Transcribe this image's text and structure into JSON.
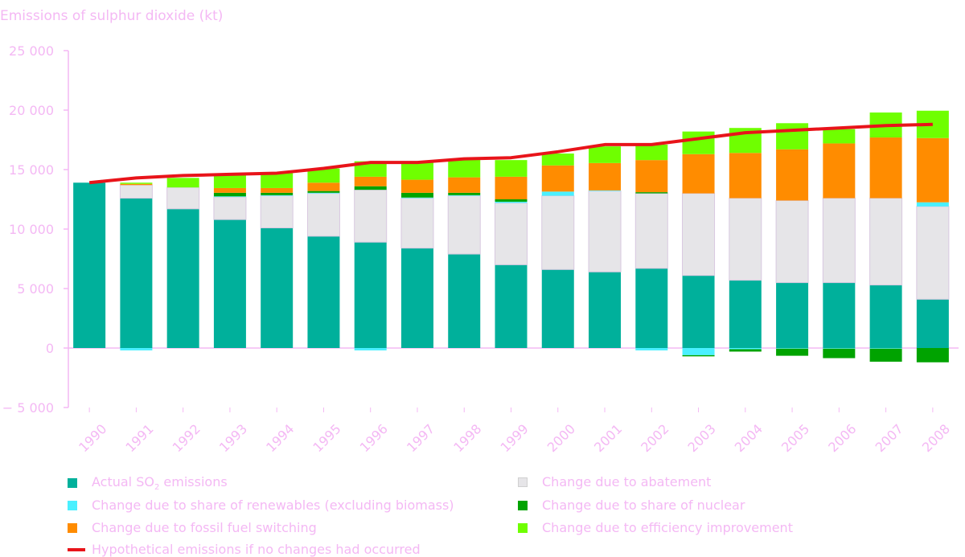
{
  "chart_data": {
    "type": "bar",
    "stacked": true,
    "title": "Emissions of sulphur dioxide (kt)",
    "ylabel": "Emissions of sulphur dioxide (kt)",
    "ylim": [
      -5000,
      25000
    ],
    "yticks": [
      -5000,
      0,
      5000,
      10000,
      15000,
      20000,
      25000
    ],
    "ytick_labels": [
      "− 5 000",
      "0",
      "5 000",
      "10 000",
      "15 000",
      "20 000",
      "25 000"
    ],
    "categories": [
      "1990",
      "1991",
      "1992",
      "1993",
      "1994",
      "1995",
      "1996",
      "1997",
      "1998",
      "1999",
      "2000",
      "2001",
      "2002",
      "2003",
      "2004",
      "2005",
      "2006",
      "2007",
      "2008"
    ],
    "series": [
      {
        "name": "Actual SO2 emissions",
        "key": "actual",
        "color": "#00b09b",
        "values": [
          13900,
          12600,
          11700,
          10800,
          10100,
          9400,
          8900,
          8400,
          7900,
          7000,
          6600,
          6400,
          6700,
          6100,
          5700,
          5500,
          5500,
          5300,
          4100
        ]
      },
      {
        "name": "Change due to abatement",
        "key": "abatement",
        "color": "#e6e5e8",
        "values": [
          0,
          1100,
          1800,
          1900,
          2700,
          3600,
          4400,
          4200,
          4900,
          5200,
          6200,
          6800,
          6300,
          6900,
          6900,
          6900,
          7100,
          7300,
          7800
        ]
      },
      {
        "name": "Change due to share of renewables (excluding biomass)",
        "key": "renewables",
        "color": "#4af0ff",
        "values": [
          0,
          -200,
          0,
          50,
          50,
          50,
          -200,
          50,
          50,
          100,
          350,
          50,
          -200,
          -600,
          -100,
          -50,
          -50,
          -50,
          350
        ]
      },
      {
        "name": "Change due to share of nuclear",
        "key": "nuclear",
        "color": "#00a300",
        "values": [
          0,
          0,
          0,
          300,
          200,
          150,
          300,
          400,
          200,
          200,
          0,
          0,
          100,
          -100,
          -200,
          -600,
          -800,
          -1100,
          -1200
        ]
      },
      {
        "name": "Change due to fossil fuel switching",
        "key": "fossil",
        "color": "#ff8c00",
        "values": [
          0,
          100,
          0,
          400,
          400,
          700,
          800,
          1100,
          1300,
          1900,
          2200,
          2300,
          2700,
          3300,
          3800,
          4300,
          4600,
          5100,
          5400
        ]
      },
      {
        "name": "Change due to efficiency improvement",
        "key": "efficiency",
        "color": "#6fff00",
        "values": [
          0,
          100,
          800,
          1200,
          1300,
          1200,
          1300,
          1500,
          1500,
          1400,
          1000,
          1400,
          1300,
          1900,
          2100,
          2200,
          1200,
          2100,
          2300
        ]
      }
    ],
    "line_series": {
      "name": "Hypothetical emissions if no changes had occurred",
      "color": "#e8141a",
      "values": [
        13900,
        14300,
        14500,
        14600,
        14700,
        15100,
        15600,
        15600,
        15900,
        16000,
        16500,
        17100,
        17100,
        17600,
        18100,
        18300,
        18500,
        18700,
        18800
      ]
    },
    "legend": [
      {
        "key": "actual",
        "label_pre": "Actual SO",
        "label_sub": "2",
        "label_post": " emissions",
        "color": "#00b09b"
      },
      {
        "key": "abatement",
        "label": "Change due to abatement",
        "color": "#e6e5e8"
      },
      {
        "key": "renewables",
        "label": "Change due to share of renewables (excluding biomass)",
        "color": "#4af0ff"
      },
      {
        "key": "nuclear",
        "label": "Change due to share of nuclear",
        "color": "#00a300"
      },
      {
        "key": "fossil",
        "label": "Change due to fossil fuel switching",
        "color": "#ff8c00"
      },
      {
        "key": "efficiency",
        "label": "Change due to efficiency improvement",
        "color": "#6fff00"
      },
      {
        "key": "line",
        "label": "Hypothetical emissions if no changes had occurred",
        "color": "#e8141a"
      }
    ],
    "axis_color": "#f4b8f4",
    "grid": false,
    "legend_position": "bottom"
  }
}
